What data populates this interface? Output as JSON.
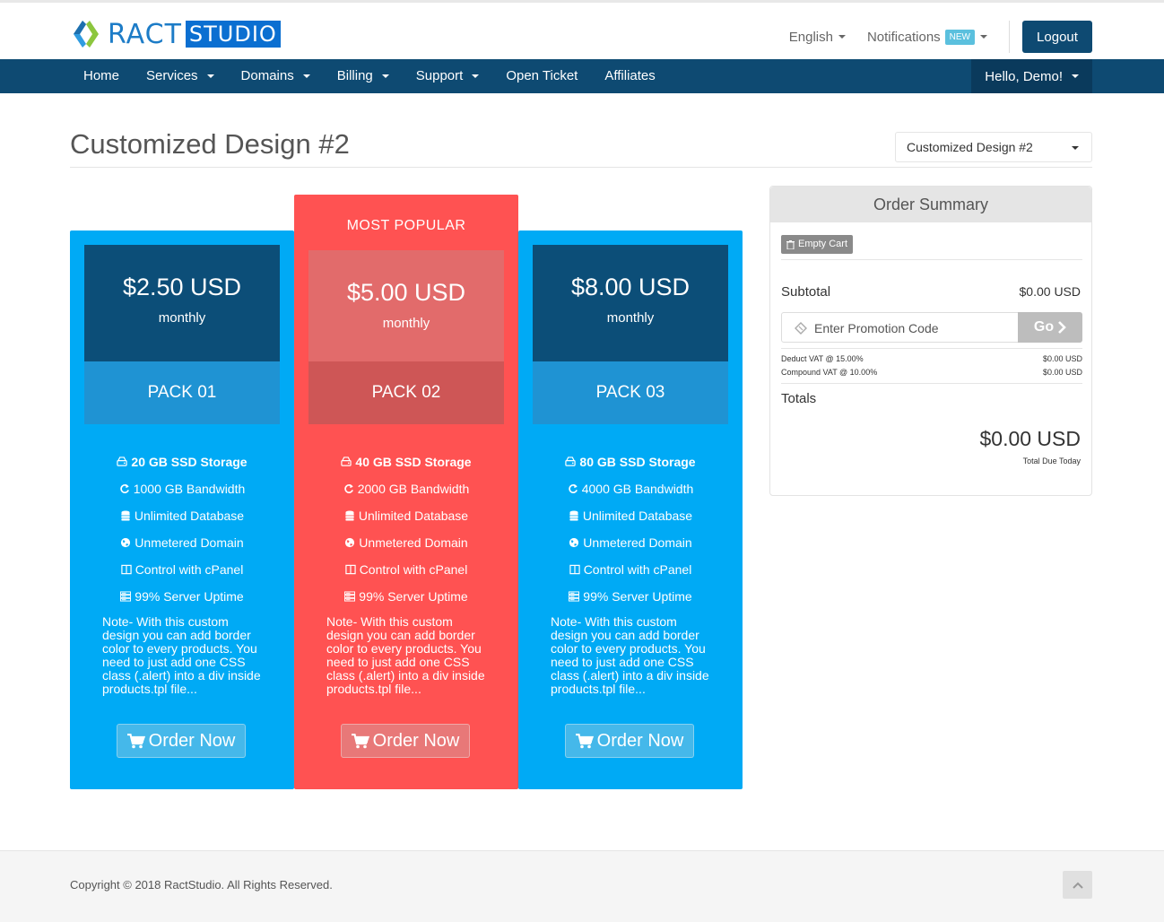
{
  "brand": {
    "name_part1": "RACT",
    "name_part2": "STUDIO"
  },
  "header": {
    "language": "English",
    "notifications_label": "Notifications",
    "notifications_badge": "NEW",
    "logout_label": "Logout"
  },
  "nav": {
    "items": [
      {
        "label": "Home",
        "dropdown": false
      },
      {
        "label": "Services",
        "dropdown": true
      },
      {
        "label": "Domains",
        "dropdown": true
      },
      {
        "label": "Billing",
        "dropdown": true
      },
      {
        "label": "Support",
        "dropdown": true
      },
      {
        "label": "Open Ticket",
        "dropdown": false
      },
      {
        "label": "Affiliates",
        "dropdown": false
      }
    ],
    "user_greeting": "Hello, Demo!"
  },
  "page": {
    "title": "Customized Design #2",
    "design_select_value": "Customized Design #2"
  },
  "products": [
    {
      "name": "PACK 01",
      "price": "$2.50 USD",
      "period": "monthly",
      "popular": false,
      "features": [
        {
          "icon": "hdd-icon",
          "text": "20 GB SSD Storage"
        },
        {
          "icon": "refresh-icon",
          "text": "1000 GB Bandwidth"
        },
        {
          "icon": "database-icon",
          "text": "Unlimited Database"
        },
        {
          "icon": "globe-icon",
          "text": "Unmetered Domain"
        },
        {
          "icon": "columns-icon",
          "text": "Control with cPanel"
        },
        {
          "icon": "server-icon",
          "text": "99% Server Uptime"
        }
      ],
      "note": "Note- With this custom design you can add border color to every products. You need to just add one CSS class (.alert) into a div inside products.tpl file...",
      "order_label": "Order Now"
    },
    {
      "name": "PACK 02",
      "price": "$5.00 USD",
      "period": "monthly",
      "popular": true,
      "popular_label": "MOST POPULAR",
      "features": [
        {
          "icon": "hdd-icon",
          "text": "40 GB SSD Storage"
        },
        {
          "icon": "refresh-icon",
          "text": "2000 GB Bandwidth"
        },
        {
          "icon": "database-icon",
          "text": "Unlimited Database"
        },
        {
          "icon": "globe-icon",
          "text": "Unmetered Domain"
        },
        {
          "icon": "columns-icon",
          "text": "Control with cPanel"
        },
        {
          "icon": "server-icon",
          "text": "99% Server Uptime"
        }
      ],
      "note": "Note- With this custom design you can add border color to every products. You need to just add one CSS class (.alert) into a div inside products.tpl file...",
      "order_label": "Order Now"
    },
    {
      "name": "PACK 03",
      "price": "$8.00 USD",
      "period": "monthly",
      "popular": false,
      "features": [
        {
          "icon": "hdd-icon",
          "text": "80 GB SSD Storage"
        },
        {
          "icon": "refresh-icon",
          "text": "4000 GB Bandwidth"
        },
        {
          "icon": "database-icon",
          "text": "Unlimited Database"
        },
        {
          "icon": "globe-icon",
          "text": "Unmetered Domain"
        },
        {
          "icon": "columns-icon",
          "text": "Control with cPanel"
        },
        {
          "icon": "server-icon",
          "text": "99% Server Uptime"
        }
      ],
      "note": "Note- With this custom design you can add border color to every products. You need to just add one CSS class (.alert) into a div inside products.tpl file...",
      "order_label": "Order Now"
    }
  ],
  "summary": {
    "title": "Order Summary",
    "empty_cart_label": "Empty Cart",
    "subtotal_label": "Subtotal",
    "subtotal_value": "$0.00 USD",
    "promo_placeholder": "Enter Promotion Code",
    "go_label": "Go",
    "vat1_label": "Deduct VAT @ 15.00%",
    "vat1_value": "$0.00 USD",
    "vat2_label": "Compound VAT @ 10.00%",
    "vat2_value": "$0.00 USD",
    "totals_label": "Totals",
    "total_amount": "$0.00 USD",
    "total_due_label": "Total Due Today"
  },
  "footer": {
    "copyright": "Copyright © 2018 RactStudio. All Rights Reserved."
  },
  "colors": {
    "nav_bg": "#0e4a72",
    "blue_card": "#00aaf5",
    "red_card": "#ff5252",
    "logo_blue": "#0b6fd1"
  }
}
